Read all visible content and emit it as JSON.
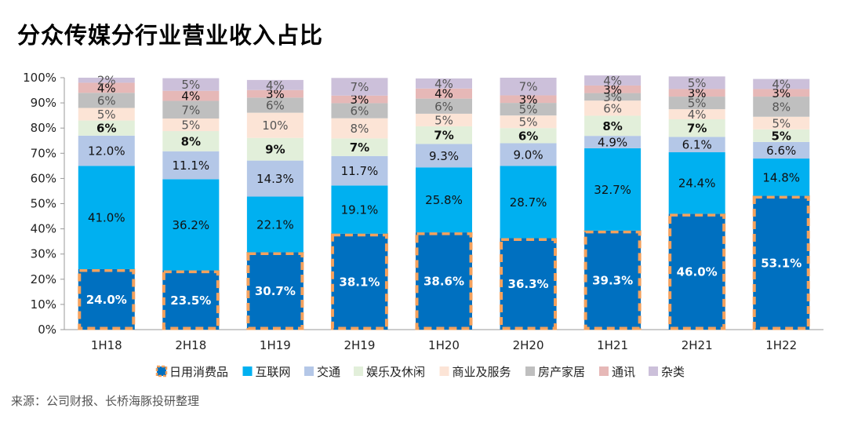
{
  "title": "分众传媒分行业营业收入占比",
  "source": "来源：公司财报、长桥海豚投研整理",
  "chart_data": {
    "type": "bar",
    "stacked": true,
    "categories": [
      "1H18",
      "2H18",
      "1H19",
      "2H19",
      "1H20",
      "2H20",
      "1H21",
      "2H21",
      "1H22"
    ],
    "ylim": [
      0,
      100
    ],
    "y_ticks": [
      "0%",
      "10%",
      "20%",
      "30%",
      "40%",
      "50%",
      "60%",
      "70%",
      "80%",
      "90%",
      "100%"
    ],
    "series": [
      {
        "name": "日用消费品",
        "color": "#0070C0",
        "label_color": "#ffffff",
        "dashed_border": true,
        "values": [
          24.0,
          23.5,
          30.7,
          38.1,
          38.6,
          36.3,
          39.3,
          46.0,
          53.1
        ],
        "labels": [
          "24.0%",
          "23.5%",
          "30.7%",
          "38.1%",
          "38.6%",
          "36.3%",
          "39.3%",
          "46.0%",
          "53.1%"
        ]
      },
      {
        "name": "互联网",
        "color": "#00B0F0",
        "label_color": "#111111",
        "values": [
          41.0,
          36.2,
          22.1,
          19.1,
          25.8,
          28.7,
          32.7,
          24.4,
          14.8
        ],
        "labels": [
          "41.0%",
          "36.2%",
          "22.1%",
          "19.1%",
          "25.8%",
          "28.7%",
          "32.7%",
          "24.4%",
          "14.8%"
        ]
      },
      {
        "name": "交通",
        "color": "#B4C7E7",
        "label_color": "#111111",
        "values": [
          12.0,
          11.1,
          14.3,
          11.7,
          9.3,
          9.0,
          4.9,
          6.1,
          6.6
        ],
        "labels": [
          "12.0%",
          "11.1%",
          "14.3%",
          "11.7%",
          "9.3%",
          "9.0%",
          "4.9%",
          "6.1%",
          "6.6%"
        ]
      },
      {
        "name": "娱乐及休闲",
        "color": "#E2EFDA",
        "label_color": "#111111",
        "values": [
          6,
          8,
          9,
          7,
          7,
          6,
          8,
          7,
          5
        ],
        "labels": [
          "6%",
          "8%",
          "9%",
          "7%",
          "7%",
          "6%",
          "8%",
          "7%",
          "5%"
        ]
      },
      {
        "name": "商业及服务",
        "color": "#FCE4D6",
        "label_color": "#555555",
        "values": [
          5,
          5,
          10,
          8,
          5,
          5,
          6,
          4,
          5
        ],
        "labels": [
          "5%",
          "5%",
          "10%",
          "8%",
          "5%",
          "5%",
          "6%",
          "4%",
          "5%"
        ]
      },
      {
        "name": "房产家居",
        "color": "#BFBFBF",
        "label_color": "#555555",
        "values": [
          6,
          7,
          6,
          6,
          6,
          5,
          3,
          5,
          8
        ],
        "labels": [
          "6%",
          "7%",
          "6%",
          "6%",
          "6%",
          "5%",
          "3%",
          "5%",
          "8%"
        ]
      },
      {
        "name": "通讯",
        "color": "#E6B8B7",
        "label_color": "#111111",
        "values": [
          4,
          4,
          3,
          3,
          4,
          3,
          3,
          3,
          3
        ],
        "labels": [
          "4%",
          "4%",
          "3%",
          "3%",
          "4%",
          "3%",
          "3%",
          "3%",
          "3%"
        ]
      },
      {
        "name": "杂类",
        "color": "#CCC0DA",
        "label_color": "#555555",
        "values": [
          2,
          5,
          4,
          7,
          4,
          7,
          4,
          5,
          4
        ],
        "labels": [
          "2%",
          "5%",
          "4%",
          "7%",
          "4%",
          "7%",
          "4%",
          "5%",
          "4%"
        ]
      }
    ],
    "legend_position": "bottom",
    "highlight_border_color": "#F4A15D"
  }
}
